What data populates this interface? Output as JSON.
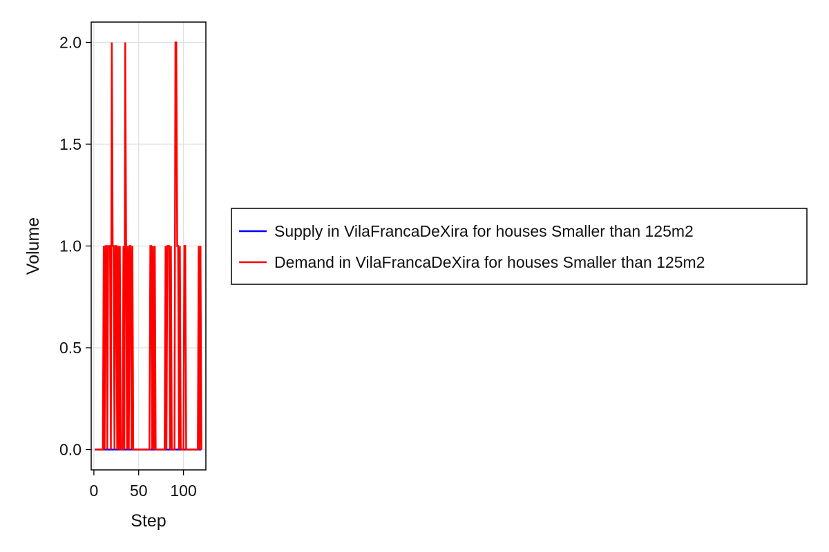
{
  "chart_data": {
    "type": "line",
    "xlabel": "Step",
    "ylabel": "Volume",
    "xlim": [
      -3,
      125
    ],
    "ylim": [
      -0.1,
      2.1
    ],
    "xticks": [
      0,
      50,
      100
    ],
    "yticks": [
      0.0,
      0.5,
      1.0,
      1.5,
      2.0
    ],
    "ytick_labels": [
      "0.0",
      "0.5",
      "1.0",
      "1.5",
      "2.0"
    ],
    "grid": true,
    "legend_position": "right-center",
    "series": [
      {
        "name": "Supply in VilaFrancaDeXira for houses Smaller than 125m2",
        "color": "#0000ff",
        "x": [
          1,
          120
        ],
        "y": [
          0,
          0
        ]
      },
      {
        "name": "Demand in VilaFrancaDeXira for houses Smaller than 125m2",
        "color": "#ff0000",
        "x": [
          1,
          2,
          3,
          4,
          5,
          6,
          7,
          8,
          9,
          10,
          11,
          12,
          13,
          14,
          15,
          16,
          17,
          18,
          19,
          20,
          21,
          22,
          23,
          24,
          25,
          26,
          27,
          28,
          29,
          30,
          31,
          32,
          33,
          34,
          35,
          36,
          37,
          38,
          39,
          40,
          41,
          42,
          43,
          44,
          45,
          46,
          47,
          48,
          49,
          50,
          51,
          52,
          53,
          54,
          55,
          56,
          57,
          58,
          59,
          60,
          61,
          62,
          63,
          64,
          65,
          66,
          67,
          68,
          69,
          70,
          71,
          72,
          73,
          74,
          75,
          76,
          77,
          78,
          79,
          80,
          81,
          82,
          83,
          84,
          85,
          86,
          87,
          88,
          89,
          90,
          91,
          92,
          93,
          94,
          95,
          96,
          97,
          98,
          99,
          100,
          101,
          102,
          103,
          104,
          105,
          106,
          107,
          108,
          109,
          110,
          111,
          112,
          113,
          114,
          115,
          116,
          117,
          118,
          119,
          120
        ],
        "y": [
          0,
          0,
          0,
          0,
          0,
          0,
          0,
          0,
          0,
          0,
          1,
          0,
          1,
          1,
          0,
          1,
          1,
          1,
          0,
          2,
          1,
          1,
          0,
          1,
          1,
          0,
          1,
          0,
          1,
          0,
          0,
          0,
          1,
          0,
          2,
          1,
          0,
          1,
          0,
          1,
          1,
          0,
          1,
          0,
          0,
          0,
          0,
          0,
          0,
          0,
          0,
          0,
          0,
          0,
          0,
          0,
          0,
          0,
          0,
          0,
          0,
          0,
          1,
          1,
          0,
          1,
          0,
          1,
          0,
          0,
          0,
          0,
          0,
          0,
          0,
          0,
          0,
          0,
          0,
          1,
          0,
          1,
          1,
          1,
          0,
          1,
          0,
          0,
          0,
          0,
          2,
          2,
          1,
          1,
          0,
          1,
          0,
          0,
          0,
          0,
          1,
          1,
          0,
          0,
          0,
          0,
          0,
          0,
          0,
          0,
          0,
          0,
          0,
          0,
          0,
          0,
          1,
          0,
          1,
          0
        ]
      }
    ]
  }
}
